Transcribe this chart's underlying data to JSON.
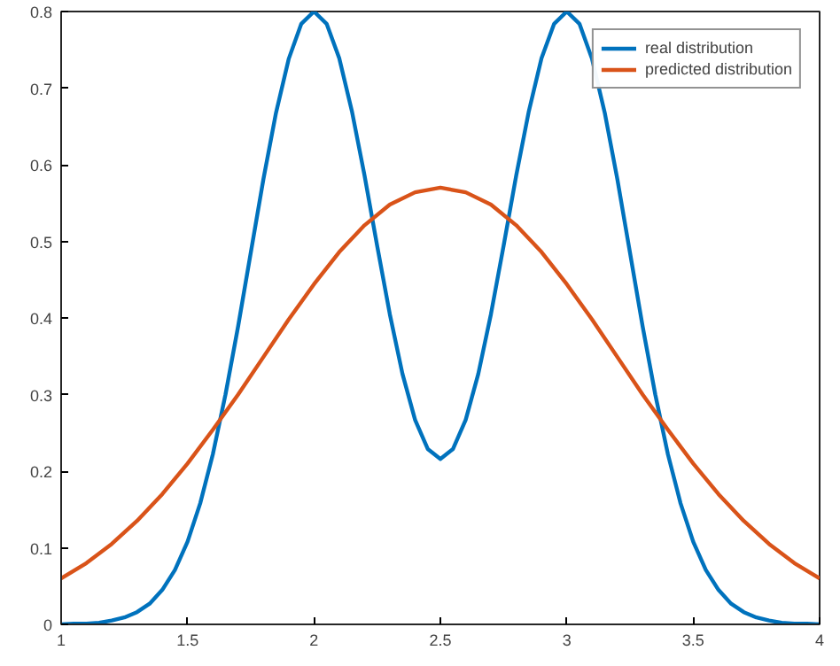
{
  "chart_data": {
    "type": "line",
    "x": [
      1.0,
      1.05,
      1.1,
      1.15,
      1.2,
      1.25,
      1.3,
      1.35,
      1.4,
      1.45,
      1.5,
      1.55,
      1.6,
      1.65,
      1.7,
      1.75,
      1.8,
      1.85,
      1.9,
      1.95,
      2.0,
      2.05,
      2.1,
      2.15,
      2.2,
      2.25,
      2.3,
      2.35,
      2.4,
      2.45,
      2.5,
      2.55,
      2.6,
      2.65,
      2.7,
      2.75,
      2.8,
      2.85,
      2.9,
      2.95,
      3.0,
      3.05,
      3.1,
      3.15,
      3.2,
      3.25,
      3.3,
      3.35,
      3.4,
      3.45,
      3.5,
      3.55,
      3.6,
      3.65,
      3.7,
      3.75,
      3.8,
      3.85,
      3.9,
      3.95,
      4.0
    ],
    "series": [
      {
        "name": "real distribution",
        "color": "#0072bd",
        "values": [
          0.0,
          0.001,
          0.001,
          0.002,
          0.005,
          0.009,
          0.016,
          0.027,
          0.045,
          0.071,
          0.108,
          0.158,
          0.222,
          0.3,
          0.389,
          0.485,
          0.581,
          0.668,
          0.738,
          0.784,
          0.8,
          0.784,
          0.739,
          0.67,
          0.586,
          0.494,
          0.405,
          0.327,
          0.267,
          0.229,
          0.216,
          0.229,
          0.267,
          0.327,
          0.405,
          0.494,
          0.586,
          0.67,
          0.739,
          0.784,
          0.8,
          0.784,
          0.738,
          0.668,
          0.581,
          0.485,
          0.389,
          0.3,
          0.222,
          0.158,
          0.108,
          0.071,
          0.045,
          0.027,
          0.016,
          0.009,
          0.005,
          0.002,
          0.001,
          0.001,
          0.0
        ]
      },
      {
        "name": "predicted distribution",
        "color": "#d95319",
        "x": [
          1.0,
          1.1,
          1.2,
          1.3,
          1.4,
          1.5,
          1.6,
          1.7,
          1.8,
          1.9,
          2.0,
          2.1,
          2.2,
          2.3,
          2.4,
          2.5,
          2.6,
          2.7,
          2.8,
          2.9,
          3.0,
          3.1,
          3.2,
          3.3,
          3.4,
          3.5,
          3.6,
          3.7,
          3.8,
          3.9,
          4.0
        ],
        "values": [
          0.06,
          0.08,
          0.105,
          0.135,
          0.17,
          0.21,
          0.254,
          0.3,
          0.349,
          0.398,
          0.444,
          0.486,
          0.521,
          0.548,
          0.564,
          0.57,
          0.564,
          0.548,
          0.521,
          0.486,
          0.444,
          0.398,
          0.349,
          0.3,
          0.254,
          0.21,
          0.17,
          0.135,
          0.105,
          0.08,
          0.06
        ]
      }
    ],
    "xlim": [
      1,
      4
    ],
    "ylim": [
      0,
      0.8
    ],
    "xticks": [
      1,
      1.5,
      2,
      2.5,
      3,
      3.5,
      4
    ],
    "yticks": [
      0,
      0.1,
      0.2,
      0.3,
      0.4,
      0.5,
      0.6,
      0.7,
      0.8
    ],
    "grid": false,
    "legend": "top right",
    "marker": "none",
    "line_style": "solid"
  }
}
